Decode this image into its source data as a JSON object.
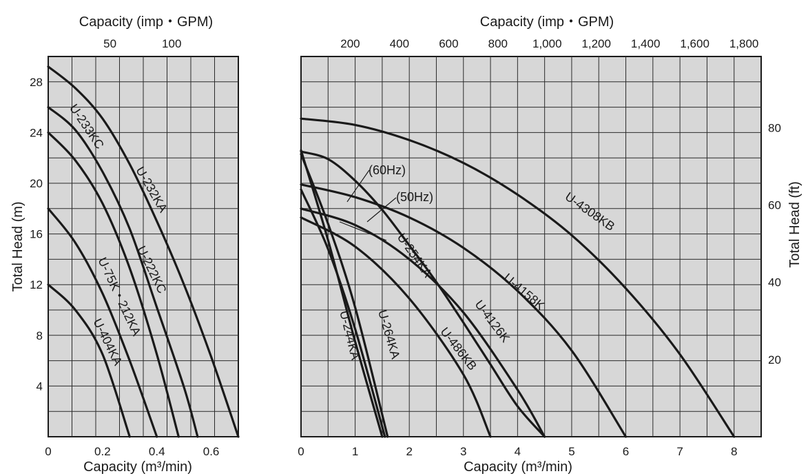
{
  "chart_data": [
    {
      "type": "line",
      "x_top_label": "Capacity (imp・GPM)",
      "x_top_ticks": [
        {
          "value": 0.2273,
          "label": "50"
        },
        {
          "value": 0.4546,
          "label": "100"
        }
      ],
      "xlabel": "Capacity (m³/min)",
      "xlim": [
        0,
        0.7
      ],
      "x_ticks": [
        {
          "value": 0,
          "label": "0"
        },
        {
          "value": 0.2,
          "label": "0.2"
        },
        {
          "value": 0.4,
          "label": "0.4"
        },
        {
          "value": 0.6,
          "label": "0.6"
        }
      ],
      "ylabel": "Total Head (m)",
      "ylim": [
        0,
        30
      ],
      "y_ticks": [
        {
          "value": 4,
          "label": "4"
        },
        {
          "value": 8,
          "label": "8"
        },
        {
          "value": 12,
          "label": "12"
        },
        {
          "value": 16,
          "label": "16"
        },
        {
          "value": 20,
          "label": "20"
        },
        {
          "value": 24,
          "label": "24"
        },
        {
          "value": 28,
          "label": "28"
        }
      ],
      "grid": true,
      "series": [
        {
          "name": "U-233KC",
          "x": [
            0,
            0.1,
            0.2,
            0.3,
            0.4,
            0.5,
            0.55
          ],
          "y": [
            26.0,
            24.2,
            20.9,
            16.4,
            10.2,
            3.9,
            0
          ]
        },
        {
          "name": "U-232KA",
          "x": [
            0,
            0.1,
            0.2,
            0.3,
            0.4,
            0.5,
            0.6,
            0.7
          ],
          "y": [
            29.2,
            27.5,
            25.1,
            21.5,
            17.0,
            12.0,
            6.3,
            0
          ]
        },
        {
          "name": "U-222KC",
          "x": [
            0,
            0.1,
            0.2,
            0.3,
            0.4,
            0.48
          ],
          "y": [
            24.0,
            21.8,
            18.4,
            13.3,
            6.5,
            0
          ]
        },
        {
          "name": "U-75K・212KA",
          "x": [
            0,
            0.1,
            0.2,
            0.3,
            0.4
          ],
          "y": [
            18.0,
            15.3,
            11.3,
            6.0,
            0
          ]
        },
        {
          "name": "U-404KA",
          "x": [
            0,
            0.1,
            0.2,
            0.3
          ],
          "y": [
            12.0,
            10.0,
            6.5,
            0
          ]
        }
      ]
    },
    {
      "type": "line",
      "x_top_label": "Capacity (imp・GPM)",
      "x_top_ticks": [
        {
          "value": 0.909,
          "label": "200"
        },
        {
          "value": 1.818,
          "label": "400"
        },
        {
          "value": 2.728,
          "label": "600"
        },
        {
          "value": 3.637,
          "label": "800"
        },
        {
          "value": 4.546,
          "label": "1,000"
        },
        {
          "value": 5.455,
          "label": "1,200"
        },
        {
          "value": 6.364,
          "label": "1,400"
        },
        {
          "value": 7.274,
          "label": "1,600"
        },
        {
          "value": 8.183,
          "label": "1,800"
        }
      ],
      "xlabel": "Capacity (m³/min)",
      "xlim": [
        0,
        8.5
      ],
      "x_ticks": [
        {
          "value": 0,
          "label": "0"
        },
        {
          "value": 1,
          "label": "1"
        },
        {
          "value": 2,
          "label": "2"
        },
        {
          "value": 3,
          "label": "3"
        },
        {
          "value": 4,
          "label": "4"
        },
        {
          "value": 5,
          "label": "5"
        },
        {
          "value": 6,
          "label": "6"
        },
        {
          "value": 7,
          "label": "7"
        },
        {
          "value": 8,
          "label": "8"
        }
      ],
      "ylabel": "Total Head (ft)",
      "ylim": [
        0,
        30
      ],
      "y_right_ticks": [
        {
          "value": 6.096,
          "label": "20"
        },
        {
          "value": 12.192,
          "label": "40"
        },
        {
          "value": 18.288,
          "label": "60"
        },
        {
          "value": 24.384,
          "label": "80"
        }
      ],
      "grid": true,
      "series": [
        {
          "name": "U-4308KB",
          "x": [
            0,
            1,
            2,
            3,
            4,
            5,
            6,
            7,
            8
          ],
          "y": [
            25.1,
            24.6,
            23.4,
            21.6,
            19.1,
            15.9,
            11.7,
            6.5,
            0
          ]
        },
        {
          "name": "U-4158K",
          "x": [
            0,
            1,
            2,
            3,
            4,
            5,
            6
          ],
          "y": [
            19.9,
            18.9,
            17.3,
            14.9,
            11.5,
            6.8,
            0
          ]
        },
        {
          "name": "U-4126K",
          "x": [
            0,
            1,
            2,
            3,
            4,
            4.5
          ],
          "y": [
            18.0,
            16.7,
            14.0,
            9.8,
            3.7,
            0
          ]
        },
        {
          "name": "U-486KB",
          "x": [
            0,
            1,
            2,
            3,
            3.5
          ],
          "y": [
            17.3,
            15.0,
            10.9,
            4.9,
            0
          ]
        },
        {
          "name": "U-254KA",
          "x": [
            0,
            0.5,
            1,
            1.5,
            2,
            2.5,
            3,
            3.5,
            4,
            4.5
          ],
          "y": [
            22.5,
            21.9,
            20.2,
            17.9,
            15.1,
            12.2,
            9.0,
            5.7,
            2.4,
            0
          ]
        },
        {
          "name": "U-244KA",
          "x": [
            0,
            0.5,
            1,
            1.5
          ],
          "y": [
            22.6,
            15.5,
            7.5,
            0
          ]
        },
        {
          "name": "U-264KA",
          "x": [
            0,
            0.5,
            1,
            1.55
          ],
          "y": [
            19.5,
            14.8,
            8.5,
            0
          ]
        },
        {
          "name": "U-264KA",
          "x": [
            0,
            0.5,
            1,
            1.6
          ],
          "y": [
            22.3,
            16.8,
            10.2,
            0
          ]
        }
      ],
      "annotations": [
        "(60Hz)",
        "(50Hz)"
      ]
    }
  ]
}
